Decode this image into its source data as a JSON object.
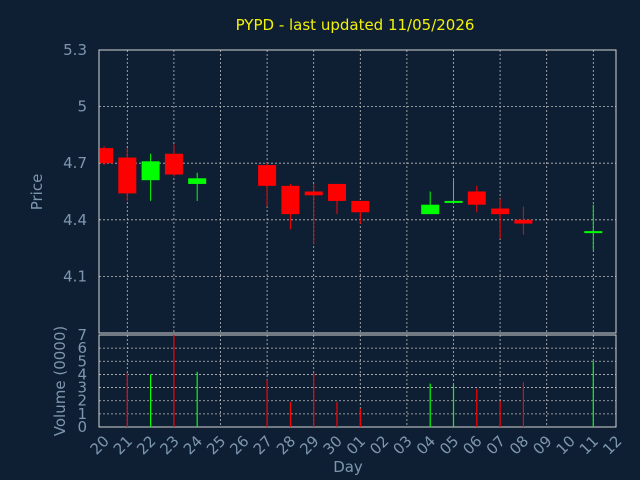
{
  "chart_data": {
    "type": "candlestick",
    "title": "PYPD - last updated 11/05/2026",
    "xlabel": "Day",
    "price_panel": {
      "ylabel": "Price",
      "ylim": [
        3.8,
        5.3
      ],
      "yticks": [
        "5.3",
        "5",
        "4.7",
        "4.4",
        "4.1"
      ],
      "ytick_values": [
        5.3,
        5.0,
        4.7,
        4.4,
        4.1
      ],
      "grid": true
    },
    "volume_panel": {
      "ylabel": "Volume (0000)",
      "ylim": [
        0,
        7
      ],
      "yticks": [
        "7",
        "6",
        "5",
        "4",
        "3",
        "2",
        "1",
        "0"
      ],
      "ytick_values": [
        7,
        6,
        5,
        4,
        3,
        2,
        1,
        0
      ],
      "grid": true
    },
    "x_ticks": [
      "20",
      "21",
      "22",
      "23",
      "24",
      "25",
      "26",
      "27",
      "28",
      "29",
      "30",
      "01",
      "02",
      "03",
      "04",
      "05",
      "06",
      "07",
      "08",
      "09",
      "10",
      "11",
      "12"
    ],
    "up_color": "#00ff00",
    "down_color": "#ff0000",
    "candles": [
      {
        "x": "20",
        "open": 4.78,
        "high": 4.79,
        "low": 4.69,
        "close": 4.7,
        "volume": 0
      },
      {
        "x": "21",
        "open": 4.73,
        "high": 4.78,
        "low": 4.5,
        "close": 4.54,
        "volume": 4.1
      },
      {
        "x": "22",
        "open": 4.61,
        "high": 4.75,
        "low": 4.5,
        "close": 4.71,
        "volume": 4.0
      },
      {
        "x": "23",
        "open": 4.75,
        "high": 4.8,
        "low": 4.63,
        "close": 4.64,
        "volume": 7.0
      },
      {
        "x": "24",
        "open": 4.59,
        "high": 4.65,
        "low": 4.5,
        "close": 4.62,
        "volume": 4.2
      },
      {
        "x": "27",
        "open": 4.69,
        "high": 4.7,
        "low": 4.47,
        "close": 4.58,
        "volume": 3.6
      },
      {
        "x": "28",
        "open": 4.58,
        "high": 4.59,
        "low": 4.35,
        "close": 4.43,
        "volume": 1.9
      },
      {
        "x": "29",
        "open": 4.55,
        "high": 4.59,
        "low": 4.27,
        "close": 4.53,
        "volume": 4.1
      },
      {
        "x": "30",
        "open": 4.59,
        "high": 4.59,
        "low": 4.43,
        "close": 4.5,
        "volume": 1.9
      },
      {
        "x": "01",
        "open": 4.5,
        "high": 4.5,
        "low": 4.38,
        "close": 4.44,
        "volume": 1.4
      },
      {
        "x": "04",
        "open": 4.43,
        "high": 4.55,
        "low": 4.43,
        "close": 4.48,
        "volume": 3.3
      },
      {
        "x": "05",
        "open": 4.49,
        "high": 4.61,
        "low": 4.49,
        "close": 4.5,
        "volume": 3.2
      },
      {
        "x": "06",
        "open": 4.55,
        "high": 4.58,
        "low": 4.44,
        "close": 4.48,
        "volume": 2.9
      },
      {
        "x": "07",
        "open": 4.46,
        "high": 4.51,
        "low": 4.3,
        "close": 4.43,
        "volume": 2.0
      },
      {
        "x": "08",
        "open": 4.4,
        "high": 4.47,
        "low": 4.32,
        "close": 4.38,
        "volume": 3.4
      },
      {
        "x": "11",
        "open": 4.33,
        "high": 4.48,
        "low": 4.24,
        "close": 4.34,
        "volume": 5.0
      }
    ]
  }
}
